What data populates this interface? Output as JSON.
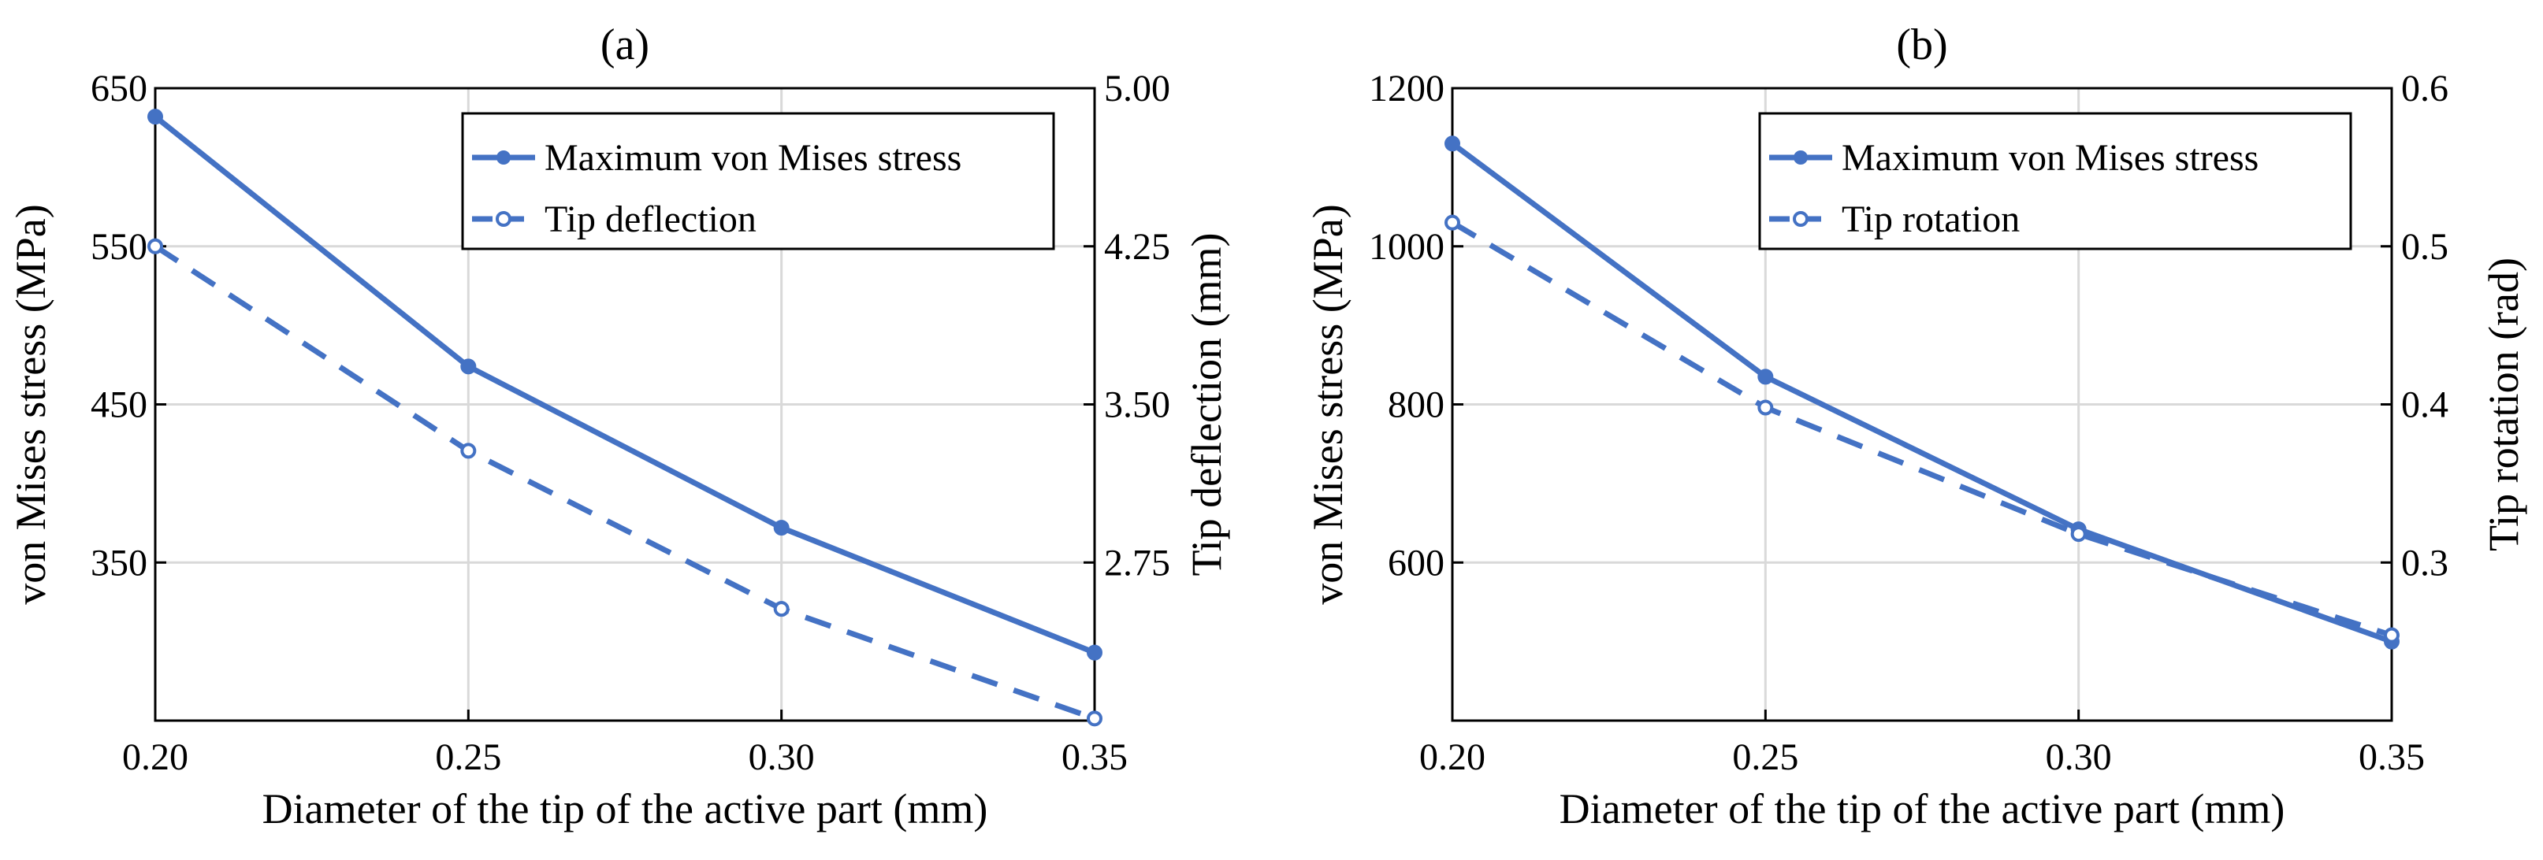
{
  "colors": {
    "series": "#4472C4",
    "grid": "#d9d9d9",
    "axis": "#000000"
  },
  "chart_data": [
    {
      "type": "line",
      "title": "(a)",
      "xlabel": "Diameter of the tip of the active part (mm)",
      "ylabel_left": "von Mises stress (MPa)",
      "ylabel_right": "Tip deflection (mm)",
      "x": [
        0.2,
        0.25,
        0.3,
        0.35
      ],
      "x_ticks": [
        "0.20",
        "0.25",
        "0.30",
        "0.35"
      ],
      "xlim": [
        0.2,
        0.35
      ],
      "ylim_left": [
        250,
        650
      ],
      "yticks_left": [
        350,
        450,
        550,
        650
      ],
      "ytick_labels_left": [
        "350",
        "450",
        "550",
        "650"
      ],
      "ylim_right": [
        2.0,
        5.0
      ],
      "yticks_right": [
        2.75,
        3.5,
        4.25,
        5.0
      ],
      "ytick_labels_right": [
        "2.75",
        "3.50",
        "4.25",
        "5.00"
      ],
      "grid": true,
      "legend_position": "top-right",
      "series": [
        {
          "name": "Maximum von Mises stress",
          "axis": "left",
          "style": "solid",
          "marker": "filled",
          "values": [
            632,
            474,
            372,
            293
          ]
        },
        {
          "name": "Tip deflection",
          "axis": "right",
          "style": "dashed",
          "marker": "open",
          "values": [
            4.25,
            3.28,
            2.53,
            2.01
          ]
        }
      ]
    },
    {
      "type": "line",
      "title": "(b)",
      "xlabel": "Diameter of the tip of the active part (mm)",
      "ylabel_left": "von Mises stress (MPa)",
      "ylabel_right": "Tip rotation (rad)",
      "x": [
        0.2,
        0.25,
        0.3,
        0.35
      ],
      "x_ticks": [
        "0.20",
        "0.25",
        "0.30",
        "0.35"
      ],
      "xlim": [
        0.2,
        0.35
      ],
      "ylim_left": [
        400,
        1200
      ],
      "yticks_left": [
        600,
        800,
        1000,
        1200
      ],
      "ytick_labels_left": [
        "600",
        "800",
        "1000",
        "1200"
      ],
      "ylim_right": [
        0.2,
        0.6
      ],
      "yticks_right": [
        0.3,
        0.4,
        0.5,
        0.6
      ],
      "ytick_labels_right": [
        "0.3",
        "0.4",
        "0.5",
        "0.6"
      ],
      "grid": true,
      "legend_position": "top-right",
      "series": [
        {
          "name": "Maximum von Mises stress",
          "axis": "left",
          "style": "solid",
          "marker": "filled",
          "values": [
            1130,
            835,
            642,
            500
          ]
        },
        {
          "name": "Tip rotation",
          "axis": "right",
          "style": "dashed",
          "marker": "open",
          "values": [
            0.515,
            0.398,
            0.318,
            0.254
          ]
        }
      ]
    }
  ]
}
